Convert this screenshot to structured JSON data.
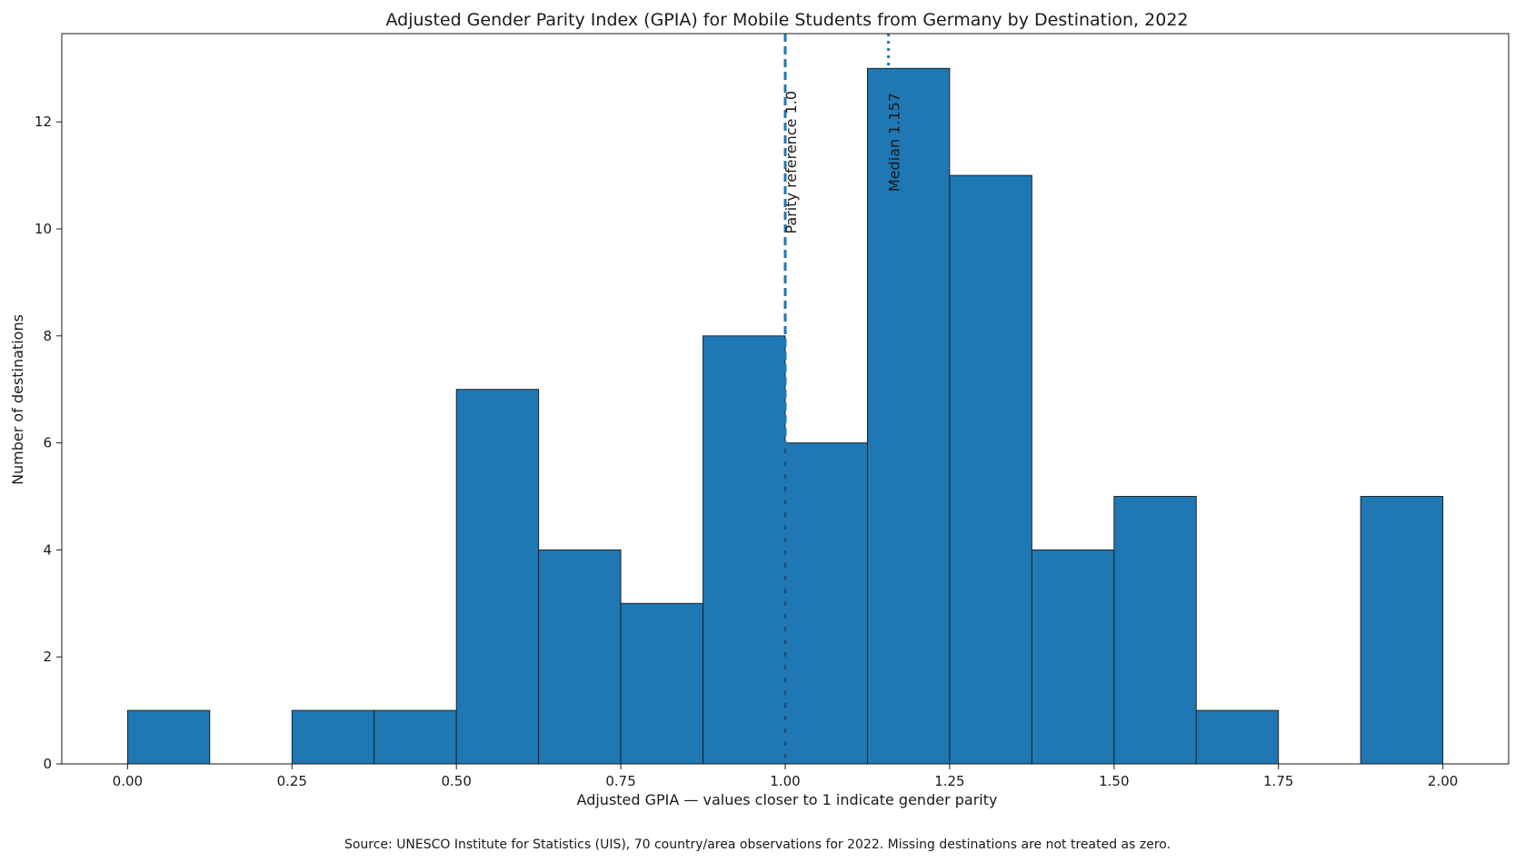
{
  "chart_data": {
    "type": "bar",
    "title": "Adjusted Gender Parity Index (GPIA) for Mobile Students from Germany by Destination, 2022",
    "xlabel": "Adjusted GPIA — values closer to 1 indicate gender parity",
    "ylabel": "Number of destinations",
    "bin_width": 0.125,
    "bins": [
      {
        "start": 0.0,
        "end": 0.125,
        "count": 1
      },
      {
        "start": 0.125,
        "end": 0.25,
        "count": 0
      },
      {
        "start": 0.25,
        "end": 0.375,
        "count": 1
      },
      {
        "start": 0.375,
        "end": 0.5,
        "count": 1
      },
      {
        "start": 0.5,
        "end": 0.625,
        "count": 7
      },
      {
        "start": 0.625,
        "end": 0.75,
        "count": 4
      },
      {
        "start": 0.75,
        "end": 0.875,
        "count": 3
      },
      {
        "start": 0.875,
        "end": 1.0,
        "count": 8
      },
      {
        "start": 1.0,
        "end": 1.125,
        "count": 6
      },
      {
        "start": 1.125,
        "end": 1.25,
        "count": 13
      },
      {
        "start": 1.25,
        "end": 1.375,
        "count": 11
      },
      {
        "start": 1.375,
        "end": 1.5,
        "count": 4
      },
      {
        "start": 1.5,
        "end": 1.625,
        "count": 5
      },
      {
        "start": 1.625,
        "end": 1.75,
        "count": 1
      },
      {
        "start": 1.75,
        "end": 1.875,
        "count": 0
      },
      {
        "start": 1.875,
        "end": 2.0,
        "count": 5
      }
    ],
    "xlim": [
      -0.1,
      2.1
    ],
    "ylim": [
      0,
      13.65
    ],
    "xticks": [
      0.0,
      0.25,
      0.5,
      0.75,
      1.0,
      1.25,
      1.5,
      1.75,
      2.0
    ],
    "xtick_labels": [
      "0.00",
      "0.25",
      "0.50",
      "0.75",
      "1.00",
      "1.25",
      "1.50",
      "1.75",
      "2.00"
    ],
    "yticks": [
      0,
      2,
      4,
      6,
      8,
      10,
      12
    ],
    "ytick_labels": [
      "0",
      "2",
      "4",
      "6",
      "8",
      "10",
      "12"
    ],
    "grid": false,
    "reference_lines": [
      {
        "x": 1.0,
        "style": "dashed",
        "label": "Parity reference 1.0"
      },
      {
        "x": 1.157,
        "style": "dotted",
        "label": "Median 1.157"
      }
    ],
    "colors": {
      "bar": "#1f77b4",
      "bar_edge": "#1a1a1a",
      "reference": "#1f77b4"
    },
    "source": "Source: UNESCO Institute for Statistics (UIS), 70 country/area observations for 2022. Missing destinations are not treated as zero."
  }
}
